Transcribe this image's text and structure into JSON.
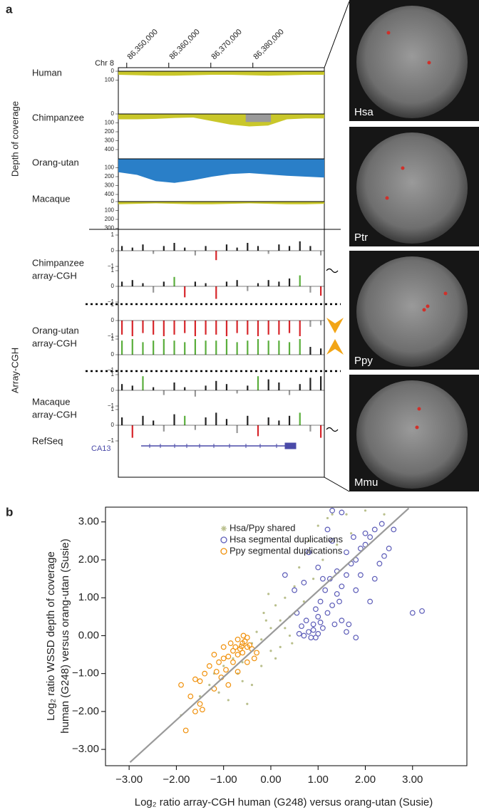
{
  "panel_a": {
    "label": "a",
    "genome_axis": {
      "chrom": "Chr 8",
      "xlim": [
        86348000,
        86397000
      ],
      "ticks": [
        {
          "value": 86350000,
          "label": "86,350,000"
        },
        {
          "value": 86360000,
          "label": "86,360,000"
        },
        {
          "value": 86370000,
          "label": "86,370,000"
        },
        {
          "value": 86380000,
          "label": "86,380,000"
        }
      ]
    },
    "coverage": {
      "title": "Depth of coverage",
      "tracks": [
        {
          "name": "Human",
          "color": "#c9c72a",
          "yticks": [
            0,
            100
          ],
          "values": [
            40,
            45,
            50,
            50,
            45,
            40,
            40,
            45,
            50,
            45,
            40,
            40
          ]
        },
        {
          "name": "Chimpanzee",
          "color": "#c9c72a",
          "yticks": [
            0,
            100,
            200,
            300,
            400
          ],
          "values": [
            60,
            60,
            55,
            45,
            40,
            80,
            120,
            140,
            130,
            60,
            50,
            50
          ],
          "overlay": {
            "x": [
              86378300,
              86384300
            ],
            "value": 90,
            "color": "#9a9a9a"
          }
        },
        {
          "name": "Orang-utan",
          "color": "#2a7fc8",
          "yticks": [
            100,
            200,
            300,
            400
          ],
          "values": [
            150,
            180,
            250,
            270,
            240,
            200,
            170,
            160,
            175,
            190,
            200,
            210
          ]
        },
        {
          "name": "Macaque",
          "color": "#c9c72a",
          "yticks": [
            0,
            100,
            200,
            300
          ],
          "values": [
            30,
            25,
            20,
            25,
            30,
            30,
            25,
            20,
            25,
            30,
            30,
            25
          ]
        }
      ]
    },
    "cgh": {
      "title": "Array-CGH",
      "yticks": [
        1,
        0,
        {
          "value": -1,
          "label": "−1"
        }
      ],
      "tracks": [
        {
          "label": [
            "Chimpanzee",
            "array-CGH"
          ],
          "rows": [
            {
              "values": [
                0.3,
                0.2,
                0.4,
                -0.2,
                0.3,
                0.5,
                0.2,
                -0.3,
                0.3,
                -0.6,
                0.4,
                0.2,
                0.5,
                0.3,
                -0.2,
                0.4,
                0.3,
                0.6,
                0.3,
                -0.3
              ],
              "colors": [
                "#222222",
                "#222222",
                "#222222",
                "#999999",
                "#222222",
                "#222222",
                "#222222",
                "#999999",
                "#222222",
                "#d7262b",
                "#222222",
                "#222222",
                "#222222",
                "#222222",
                "#999999",
                "#222222",
                "#222222",
                "#222222",
                "#222222",
                "#999999"
              ]
            },
            {
              "values": [
                0.3,
                0.4,
                0.2,
                -0.4,
                0.3,
                0.6,
                -0.7,
                0.3,
                0.2,
                -0.8,
                0.3,
                0.4,
                -0.3,
                0.2,
                0.4,
                0.3,
                0.5,
                0.7,
                -0.4,
                -0.6
              ],
              "colors": [
                "#222222",
                "#222222",
                "#222222",
                "#999999",
                "#222222",
                "#5aae3c",
                "#d7262b",
                "#222222",
                "#222222",
                "#d7262b",
                "#222222",
                "#222222",
                "#999999",
                "#222222",
                "#222222",
                "#222222",
                "#222222",
                "#5aae3c",
                "#999999",
                "#d7262b"
              ]
            }
          ]
        },
        {
          "label": [
            "Orang-utan",
            "array-CGH"
          ],
          "rows": [
            {
              "values": [
                -0.9,
                -1.0,
                -0.8,
                -0.9,
                -1.0,
                -0.9,
                -0.8,
                -1.0,
                -0.9,
                -0.9,
                -1.0,
                -0.8,
                -0.9,
                -1.0,
                -0.9,
                -0.9,
                -0.8,
                -1.0,
                -0.4,
                -0.3
              ],
              "colors": [
                "#d7262b",
                "#d7262b",
                "#d7262b",
                "#d7262b",
                "#d7262b",
                "#d7262b",
                "#d7262b",
                "#d7262b",
                "#d7262b",
                "#d7262b",
                "#d7262b",
                "#d7262b",
                "#d7262b",
                "#d7262b",
                "#d7262b",
                "#d7262b",
                "#d7262b",
                "#d7262b",
                "#999999",
                "#999999"
              ]
            },
            {
              "values": [
                0.9,
                1.0,
                0.8,
                0.9,
                1.0,
                0.9,
                0.8,
                1.0,
                0.9,
                0.9,
                1.0,
                0.8,
                0.9,
                1.0,
                0.9,
                0.9,
                0.8,
                1.0,
                0.5,
                0.4
              ],
              "colors": [
                "#5aae3c",
                "#5aae3c",
                "#5aae3c",
                "#5aae3c",
                "#5aae3c",
                "#5aae3c",
                "#5aae3c",
                "#5aae3c",
                "#5aae3c",
                "#5aae3c",
                "#5aae3c",
                "#5aae3c",
                "#5aae3c",
                "#5aae3c",
                "#5aae3c",
                "#5aae3c",
                "#5aae3c",
                "#5aae3c",
                "#222222",
                "#222222"
              ]
            }
          ]
        },
        {
          "label": [
            "Macaque",
            "array-CGH"
          ],
          "rows": [
            {
              "values": [
                0.4,
                0.3,
                0.9,
                0.2,
                -0.3,
                0.5,
                0.2,
                -0.4,
                0.3,
                0.6,
                0.4,
                -0.2,
                0.3,
                0.9,
                0.7,
                0.5,
                -0.3,
                0.4,
                0.8,
                0.9
              ],
              "colors": [
                "#222222",
                "#222222",
                "#5aae3c",
                "#222222",
                "#999999",
                "#222222",
                "#222222",
                "#999999",
                "#222222",
                "#222222",
                "#222222",
                "#999999",
                "#222222",
                "#5aae3c",
                "#222222",
                "#222222",
                "#999999",
                "#222222",
                "#222222",
                "#222222"
              ]
            },
            {
              "values": [
                0.5,
                -0.8,
                0.6,
                0.3,
                -0.4,
                0.7,
                0.6,
                -0.3,
                0.5,
                0.8,
                0.4,
                -0.5,
                0.6,
                -0.7,
                0.5,
                0.3,
                0.6,
                0.8,
                -0.4,
                -0.8
              ],
              "colors": [
                "#222222",
                "#d7262b",
                "#222222",
                "#222222",
                "#999999",
                "#222222",
                "#5aae3c",
                "#999999",
                "#222222",
                "#222222",
                "#222222",
                "#999999",
                "#222222",
                "#d7262b",
                "#222222",
                "#222222",
                "#222222",
                "#5aae3c",
                "#999999",
                "#d7262b"
              ]
            }
          ]
        }
      ],
      "refseq": {
        "label": "RefSeq",
        "gene": "CA13"
      }
    },
    "images": [
      {
        "label": "Hsa"
      },
      {
        "label": "Ptr"
      },
      {
        "label": "Ppy"
      },
      {
        "label": "Mmu"
      }
    ]
  },
  "panel_b": {
    "label": "b"
  },
  "chart_data": {
    "type": "scatter",
    "xlabel": "Log₂ ratio array-CGH human (G248) versus orang-utan (Susie)",
    "ylabel": [
      "Log₂ ratio  WSSD depth of coverage",
      "human (G248) versus orang-utan (Susie)"
    ],
    "xlim": [
      -3.5,
      4.15
    ],
    "ylim": [
      -3.43,
      3.39
    ],
    "xticks": [
      {
        "value": -3,
        "label": "−3.00"
      },
      {
        "value": -2,
        "label": "−2.00"
      },
      {
        "value": -1,
        "label": "−1.00"
      },
      {
        "value": 0,
        "label": "0.00"
      },
      {
        "value": 1,
        "label": "1.00"
      },
      {
        "value": 2,
        "label": "2.00"
      },
      {
        "value": 3,
        "label": "3.00"
      }
    ],
    "yticks": [
      {
        "value": -3,
        "label": "−3.00"
      },
      {
        "value": -2,
        "label": "−2.00"
      },
      {
        "value": -1,
        "label": "−1.00"
      },
      {
        "value": 0,
        "label": "0.00"
      },
      {
        "value": 1,
        "label": "1.00"
      },
      {
        "value": 2,
        "label": "2.00"
      },
      {
        "value": 3,
        "label": "3.00"
      }
    ],
    "fit_line": {
      "x": [
        -2.98,
        2.92
      ],
      "y": [
        -3.34,
        3.36
      ],
      "color": "#9a9a9a"
    },
    "series": [
      {
        "name": "Hsa/Ppy shared",
        "color": "#b9bf8c",
        "marker": "star",
        "x": [
          -1.9,
          -1.5,
          -1.2,
          -1.0,
          -0.8,
          -0.6,
          -0.4,
          -0.2,
          0.0,
          0.2,
          0.4,
          -0.3,
          -0.1,
          0.1,
          0.3,
          0.5,
          0.6,
          0.8,
          1.0,
          1.2,
          1.6,
          2.0,
          2.4,
          0.2,
          0.1,
          -0.6,
          -0.9,
          -0.5,
          -1.1,
          -0.2,
          0.4,
          0.7,
          1.4,
          1.7,
          0.0,
          -0.7,
          0.9,
          1.1,
          -0.4,
          0.3,
          -1.3,
          -0.15,
          1.3,
          0.45,
          -0.05
        ],
        "y": [
          -2.1,
          -1.6,
          -1.0,
          -0.8,
          -0.6,
          -0.7,
          -0.2,
          -0.1,
          0.2,
          0.4,
          0.5,
          0.1,
          0.4,
          0.8,
          1.0,
          1.3,
          1.8,
          2.5,
          2.9,
          3.1,
          3.2,
          3.3,
          3.2,
          -0.3,
          -0.6,
          -1.2,
          -1.7,
          -1.8,
          -1.5,
          -0.8,
          0.0,
          0.9,
          2.4,
          2.7,
          -0.4,
          -1.0,
          1.5,
          2.0,
          -1.3,
          0.2,
          -1.3,
          0.6,
          3.2,
          -0.2,
          1.1
        ]
      },
      {
        "name": "Hsa segmental duplications",
        "color": "#5c5cb8",
        "marker": "circle",
        "x": [
          0.7,
          0.8,
          0.9,
          1.0,
          1.1,
          0.75,
          0.85,
          0.95,
          1.05,
          1.2,
          1.3,
          1.4,
          0.9,
          1.0,
          0.6,
          0.65,
          1.15,
          1.25,
          1.4,
          1.5,
          1.6,
          1.7,
          1.8,
          1.9,
          2.0,
          2.1,
          2.2,
          2.0,
          2.3,
          2.4,
          1.6,
          1.3,
          1.2,
          1.3,
          1.5,
          0.3,
          0.5,
          0.7,
          0.8,
          1.0,
          1.1,
          1.8,
          2.1,
          2.5,
          2.6,
          1.5,
          1.6,
          1.8,
          1.65,
          3.0,
          3.2,
          1.35,
          0.95,
          1.45,
          2.2,
          1.9,
          0.55,
          1.75,
          2.35,
          1.05
        ],
        "y": [
          0.0,
          0.1,
          0.3,
          0.5,
          0.2,
          0.4,
          -0.05,
          0.7,
          0.9,
          0.6,
          0.8,
          1.1,
          0.15,
          0.05,
          0.05,
          0.25,
          1.2,
          1.5,
          1.7,
          1.3,
          1.6,
          1.9,
          2.0,
          2.3,
          2.4,
          2.6,
          2.8,
          2.7,
          1.9,
          2.1,
          2.2,
          2.5,
          2.8,
          3.3,
          3.25,
          1.6,
          1.2,
          1.4,
          2.2,
          1.8,
          1.5,
          1.2,
          0.9,
          2.3,
          2.8,
          0.4,
          0.1,
          -0.05,
          0.3,
          0.6,
          0.65,
          0.3,
          -0.05,
          0.9,
          1.5,
          1.6,
          0.6,
          2.6,
          2.95,
          0.35
        ]
      },
      {
        "name": "Ppy segmental duplications",
        "color": "#f0900a",
        "marker": "circle",
        "x": [
          -0.6,
          -0.5,
          -0.7,
          -0.65,
          -0.55,
          -0.45,
          -0.75,
          -0.6,
          -0.5,
          -0.7,
          -0.8,
          -0.4,
          -0.62,
          -0.58,
          -0.85,
          -0.9,
          -1.0,
          -1.1,
          -1.2,
          -0.95,
          -1.3,
          -1.05,
          -0.8,
          -0.7,
          -1.4,
          -1.5,
          -1.6,
          -0.9,
          -1.2,
          -1.9,
          -1.7,
          -1.5,
          -1.6,
          -1.8,
          -1.45,
          -0.3,
          -0.35,
          -0.5,
          -1.0,
          -1.15
        ],
        "y": [
          -0.2,
          -0.3,
          -0.1,
          -0.35,
          -0.15,
          -0.25,
          -0.3,
          -0.45,
          -0.05,
          -0.5,
          -0.4,
          -0.35,
          -0.28,
          0.0,
          -0.2,
          -0.55,
          -0.6,
          -0.7,
          -0.5,
          -0.9,
          -0.8,
          -1.1,
          -0.7,
          -0.95,
          -1.0,
          -1.2,
          -1.15,
          -1.3,
          -1.4,
          -1.3,
          -1.6,
          -1.8,
          -2.0,
          -2.5,
          -1.95,
          -0.45,
          -0.6,
          -0.7,
          -0.3,
          -0.95
        ]
      }
    ]
  }
}
